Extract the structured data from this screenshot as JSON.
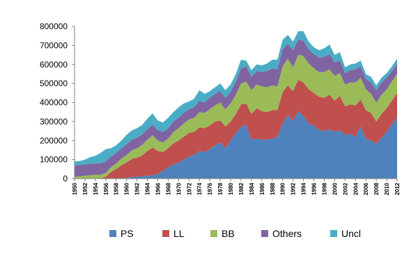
{
  "chart_data": {
    "type": "area",
    "stacked": true,
    "x": [
      1950,
      1951,
      1952,
      1953,
      1954,
      1955,
      1956,
      1957,
      1958,
      1959,
      1960,
      1961,
      1962,
      1963,
      1964,
      1965,
      1966,
      1967,
      1968,
      1969,
      1970,
      1971,
      1972,
      1973,
      1974,
      1975,
      1976,
      1977,
      1978,
      1979,
      1980,
      1981,
      1982,
      1983,
      1984,
      1985,
      1986,
      1987,
      1988,
      1989,
      1990,
      1991,
      1992,
      1993,
      1994,
      1995,
      1996,
      1997,
      1998,
      1999,
      2000,
      2001,
      2002,
      2003,
      2004,
      2005,
      2006,
      2007,
      2008,
      2009,
      2010,
      2011,
      2012
    ],
    "x_tick_labels": [
      "1950",
      "1952",
      "1954",
      "1956",
      "1958",
      "1960",
      "1962",
      "1964",
      "1966",
      "1968",
      "1970",
      "1972",
      "1974",
      "1976",
      "1978",
      "1980",
      "1982",
      "1984",
      "1986",
      "1988",
      "1990",
      "1992",
      "1994",
      "1996",
      "1998",
      "2000",
      "2002",
      "2004",
      "2006",
      "2008",
      "2010",
      "2012"
    ],
    "y_tick_labels": [
      "0",
      "100000",
      "200000",
      "300000",
      "400000",
      "500000",
      "600000",
      "700000",
      "800000"
    ],
    "ylim": [
      0,
      800000
    ],
    "grid": false,
    "legend_position": "bottom",
    "series": [
      {
        "name": "PS",
        "color": "#4f81bd",
        "values": [
          0,
          0,
          0,
          0,
          0,
          0,
          0,
          0,
          0,
          0,
          5000,
          8000,
          10000,
          12000,
          15000,
          18000,
          25000,
          40000,
          60000,
          75000,
          85000,
          100000,
          115000,
          125000,
          145000,
          140000,
          155000,
          175000,
          190000,
          160000,
          200000,
          240000,
          270000,
          285000,
          205000,
          210000,
          205000,
          205000,
          210000,
          220000,
          290000,
          335000,
          300000,
          355000,
          330000,
          290000,
          280000,
          255000,
          250000,
          260000,
          245000,
          255000,
          230000,
          235000,
          220000,
          275000,
          210000,
          200000,
          185000,
          215000,
          245000,
          285000,
          320000
        ]
      },
      {
        "name": "LL",
        "color": "#c0504d",
        "values": [
          0,
          0,
          0,
          0,
          0,
          0,
          10000,
          35000,
          50000,
          70000,
          80000,
          95000,
          100000,
          110000,
          130000,
          145000,
          120000,
          100000,
          100000,
          110000,
          115000,
          120000,
          125000,
          120000,
          125000,
          125000,
          125000,
          125000,
          115000,
          115000,
          100000,
          100000,
          120000,
          110000,
          135000,
          160000,
          150000,
          145000,
          150000,
          140000,
          165000,
          155000,
          160000,
          165000,
          175000,
          180000,
          170000,
          175000,
          175000,
          180000,
          165000,
          180000,
          150000,
          155000,
          165000,
          140000,
          150000,
          145000,
          115000,
          125000,
          125000,
          125000,
          130000
        ]
      },
      {
        "name": "BB",
        "color": "#9bbb59",
        "values": [
          10000,
          12000,
          15000,
          18000,
          20000,
          20000,
          20000,
          25000,
          30000,
          35000,
          40000,
          45000,
          50000,
          55000,
          60000,
          65000,
          55000,
          50000,
          50000,
          60000,
          65000,
          70000,
          70000,
          75000,
          80000,
          80000,
          85000,
          85000,
          95000,
          90000,
          95000,
          100000,
          110000,
          115000,
          125000,
          125000,
          130000,
          130000,
          130000,
          125000,
          135000,
          140000,
          125000,
          130000,
          140000,
          135000,
          130000,
          130000,
          135000,
          135000,
          130000,
          120000,
          115000,
          115000,
          120000,
          115000,
          110000,
          100000,
          100000,
          100000,
          100000,
          100000,
          100000
        ]
      },
      {
        "name": "Others",
        "color": "#8064a2",
        "values": [
          60000,
          60000,
          60000,
          60000,
          60000,
          60000,
          60000,
          55000,
          55000,
          55000,
          55000,
          55000,
          55000,
          55000,
          55000,
          55000,
          55000,
          55000,
          55000,
          55000,
          55000,
          55000,
          55000,
          55000,
          60000,
          55000,
          60000,
          60000,
          60000,
          60000,
          60000,
          70000,
          80000,
          80000,
          70000,
          70000,
          75000,
          85000,
          90000,
          90000,
          90000,
          80000,
          90000,
          80000,
          80000,
          75000,
          75000,
          75000,
          80000,
          80000,
          70000,
          65000,
          60000,
          65000,
          70000,
          60000,
          55000,
          60000,
          65000,
          65000,
          60000,
          55000,
          55000
        ]
      },
      {
        "name": "Uncl",
        "color": "#4bacc6",
        "values": [
          20000,
          20000,
          25000,
          35000,
          40000,
          55000,
          65000,
          45000,
          40000,
          40000,
          50000,
          50000,
          50000,
          50000,
          55000,
          60000,
          50000,
          50000,
          55000,
          50000,
          55000,
          50000,
          40000,
          45000,
          55000,
          45000,
          35000,
          35000,
          40000,
          40000,
          40000,
          40000,
          45000,
          30000,
          35000,
          35000,
          35000,
          40000,
          45000,
          50000,
          50000,
          45000,
          45000,
          45000,
          50000,
          40000,
          35000,
          40000,
          45000,
          50000,
          40000,
          45000,
          30000,
          30000,
          30000,
          30000,
          25000,
          30000,
          25000,
          25000,
          25000,
          25000,
          25000
        ]
      }
    ]
  }
}
